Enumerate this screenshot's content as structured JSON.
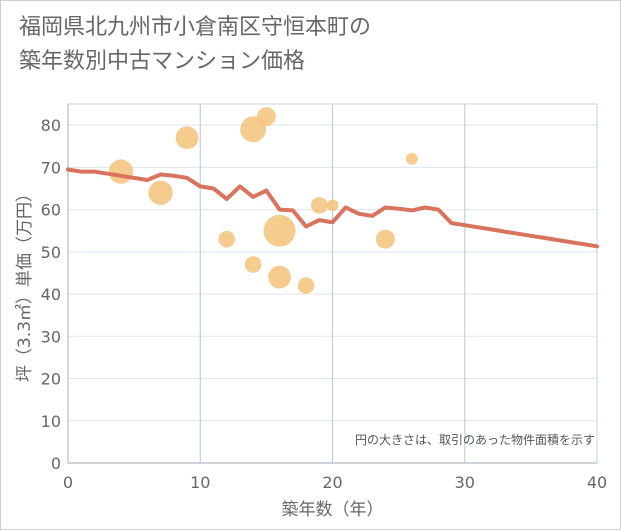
{
  "title_lines": [
    "福岡県北九州市小倉南区守恒本町の",
    "築年数別中古マンション価格"
  ],
  "chart_data": {
    "type": "scatter",
    "xlabel": "築年数（年）",
    "ylabel": "坪（3.3㎡）単価（万円）",
    "xlim": [
      0,
      40
    ],
    "ylim": [
      0,
      85
    ],
    "xticks": [
      "0",
      "10",
      "20",
      "30",
      "40"
    ],
    "yticks": [
      "0",
      "10",
      "20",
      "30",
      "40",
      "50",
      "60",
      "70",
      "80"
    ],
    "grid": true,
    "note": "円の大きさは、取引のあった物件面積を示す",
    "colors": {
      "bubble": "#f5c27a",
      "line": "#d9735e",
      "grid": "#dde5ee",
      "vgrid": "#b8c8d8",
      "text": "#666666"
    },
    "scatter_points": [
      {
        "x": 4,
        "y": 69,
        "size": 3
      },
      {
        "x": 7,
        "y": 64,
        "size": 3
      },
      {
        "x": 9,
        "y": 77,
        "size": 2.5
      },
      {
        "x": 12,
        "y": 53,
        "size": 1
      },
      {
        "x": 14,
        "y": 79,
        "size": 3.5
      },
      {
        "x": 15,
        "y": 82,
        "size": 1.5
      },
      {
        "x": 14,
        "y": 47,
        "size": 1
      },
      {
        "x": 16,
        "y": 55,
        "size": 6
      },
      {
        "x": 16,
        "y": 44,
        "size": 2.5
      },
      {
        "x": 18,
        "y": 42,
        "size": 1
      },
      {
        "x": 19,
        "y": 61,
        "size": 1
      },
      {
        "x": 20,
        "y": 61,
        "size": 0.3
      },
      {
        "x": 24,
        "y": 53,
        "size": 1.5
      },
      {
        "x": 26,
        "y": 72,
        "size": 0.3
      }
    ],
    "trend_line": {
      "x": [
        0,
        1,
        2,
        3,
        4,
        5,
        6,
        7,
        8,
        9,
        10,
        11,
        12,
        13,
        14,
        15,
        16,
        17,
        18,
        19,
        20,
        21,
        22,
        23,
        24,
        25,
        26,
        27,
        28,
        29,
        30,
        31,
        32,
        33,
        34,
        35,
        36,
        37,
        38,
        39,
        40
      ],
      "y": [
        69.5,
        69,
        69,
        68.5,
        68,
        67.5,
        67,
        68.3,
        68,
        67.5,
        65.5,
        65,
        62.5,
        65.5,
        63,
        64.5,
        60,
        59.8,
        56,
        57.5,
        57,
        60.5,
        59,
        58.5,
        60.5,
        60.2,
        59.8,
        60.5,
        60,
        56.8,
        56.3,
        55.8,
        55.3,
        54.8,
        54.3,
        53.8,
        53.3,
        52.8,
        52.3,
        51.8,
        51.3
      ]
    }
  }
}
